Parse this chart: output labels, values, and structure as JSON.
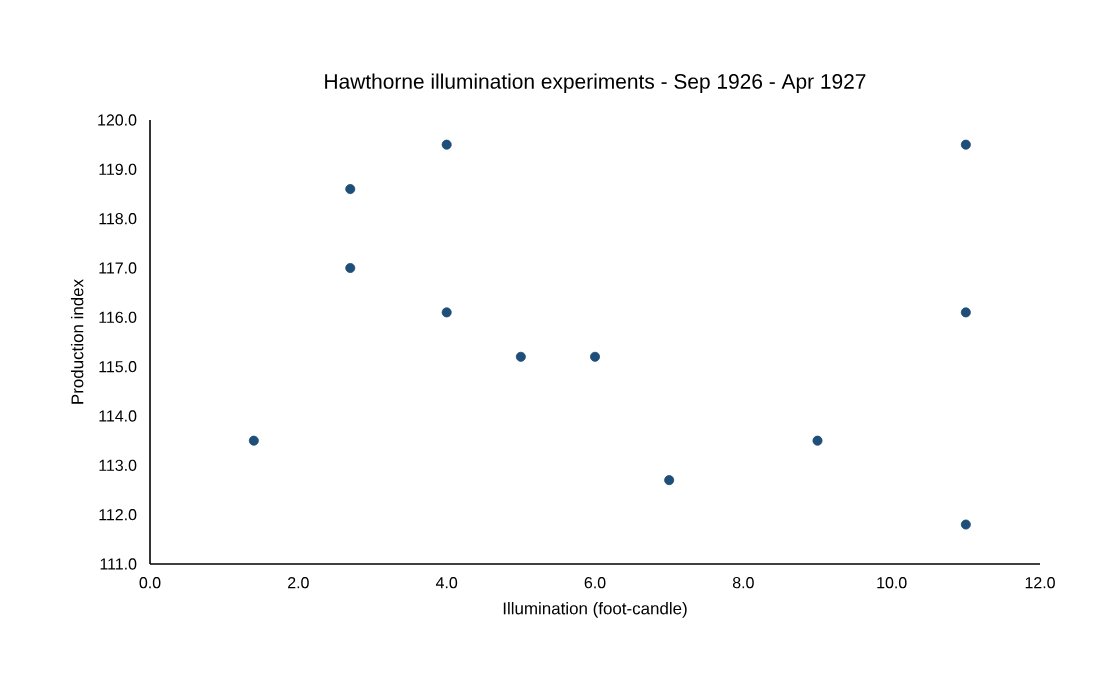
{
  "chart_data": {
    "type": "scatter",
    "title": "Hawthorne illumination experiments - Sep 1926 - Apr 1927",
    "xlabel": "Illumination (foot-candle)",
    "ylabel": "Production index",
    "x": [
      1.4,
      2.7,
      2.7,
      4,
      4,
      5,
      6,
      7,
      9,
      11,
      11,
      11
    ],
    "values": [
      113.5,
      118.6,
      117.0,
      119.5,
      116.1,
      115.2,
      115.2,
      112.7,
      113.5,
      119.5,
      116.1,
      111.8
    ],
    "color": "#1f4e79",
    "grid": false,
    "xlim": [
      0,
      12
    ],
    "ylim": [
      111,
      120
    ],
    "xticks": [
      {
        "value": 0,
        "label": "0.0"
      },
      {
        "value": 2,
        "label": "2.0"
      },
      {
        "value": 4,
        "label": "4.0"
      },
      {
        "value": 6,
        "label": "6.0"
      },
      {
        "value": 8,
        "label": "8.0"
      },
      {
        "value": 10,
        "label": "10.0"
      },
      {
        "value": 12,
        "label": "12.0"
      }
    ],
    "yticks": [
      {
        "value": 111,
        "label": "111.0"
      },
      {
        "value": 112,
        "label": "112.0"
      },
      {
        "value": 113,
        "label": "113.0"
      },
      {
        "value": 114,
        "label": "114.0"
      },
      {
        "value": 115,
        "label": "115.0"
      },
      {
        "value": 116,
        "label": "116.0"
      },
      {
        "value": 117,
        "label": "117.0"
      },
      {
        "value": 118,
        "label": "118.0"
      },
      {
        "value": 119,
        "label": "119.0"
      },
      {
        "value": 120,
        "label": "120.0"
      }
    ]
  }
}
